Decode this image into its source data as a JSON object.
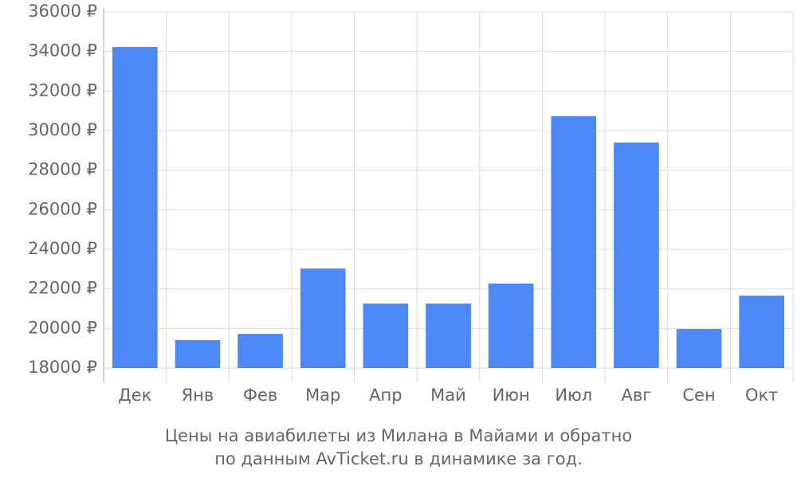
{
  "chart_data": {
    "type": "bar",
    "caption": [
      "Цены на авиабилеты из Милана в Майами и обратно",
      "по данным AvTicket.ru в динамике за год."
    ],
    "categories": [
      "Дек",
      "Янв",
      "Фев",
      "Мар",
      "Апр",
      "Май",
      "Июн",
      "Июл",
      "Авг",
      "Сен",
      "Окт"
    ],
    "values": [
      34230,
      19410,
      19730,
      23030,
      21260,
      21260,
      22270,
      30730,
      29400,
      19970,
      21660
    ],
    "color": "#4d88f9",
    "ylim": [
      18000,
      36000
    ],
    "yticks": [
      {
        "value": 18000,
        "label": "18000 ₽"
      },
      {
        "value": 20000,
        "label": "20000 ₽"
      },
      {
        "value": 22000,
        "label": "22000 ₽"
      },
      {
        "value": 24000,
        "label": "24000 ₽"
      },
      {
        "value": 26000,
        "label": "26000 ₽"
      },
      {
        "value": 28000,
        "label": "28000 ₽"
      },
      {
        "value": 30000,
        "label": "30000 ₽"
      },
      {
        "value": 32000,
        "label": "32000 ₽"
      },
      {
        "value": 34000,
        "label": "34000 ₽"
      },
      {
        "value": 36000,
        "label": "36000 ₽"
      }
    ],
    "grid": true
  }
}
